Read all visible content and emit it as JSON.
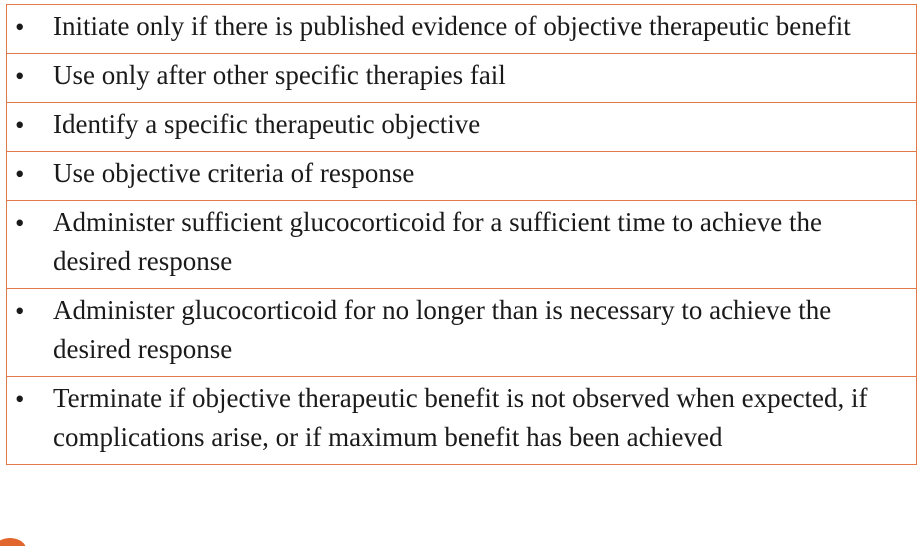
{
  "bullet_glyph": "•",
  "rows": [
    {
      "text": "Initiate only if there is published evidence of objective therapeutic benefit"
    },
    {
      "text": "Use only after other specific therapies fail"
    },
    {
      "text": "Identify a specific therapeutic objective"
    },
    {
      "text": "Use objective criteria of response"
    },
    {
      "text": "Administer sufficient glucocorticoid for a sufficient time to achieve the desired response"
    },
    {
      "text": "Administer glucocorticoid for no longer than is necessary to achieve the desired response"
    },
    {
      "text": "Terminate if objective therapeutic benefit is not observed when expected, if complications arise, or if maximum benefit has been achieved"
    }
  ],
  "colors": {
    "border": "#e07a4a",
    "accent": "#e0662d",
    "text": "#1a1a1a"
  }
}
